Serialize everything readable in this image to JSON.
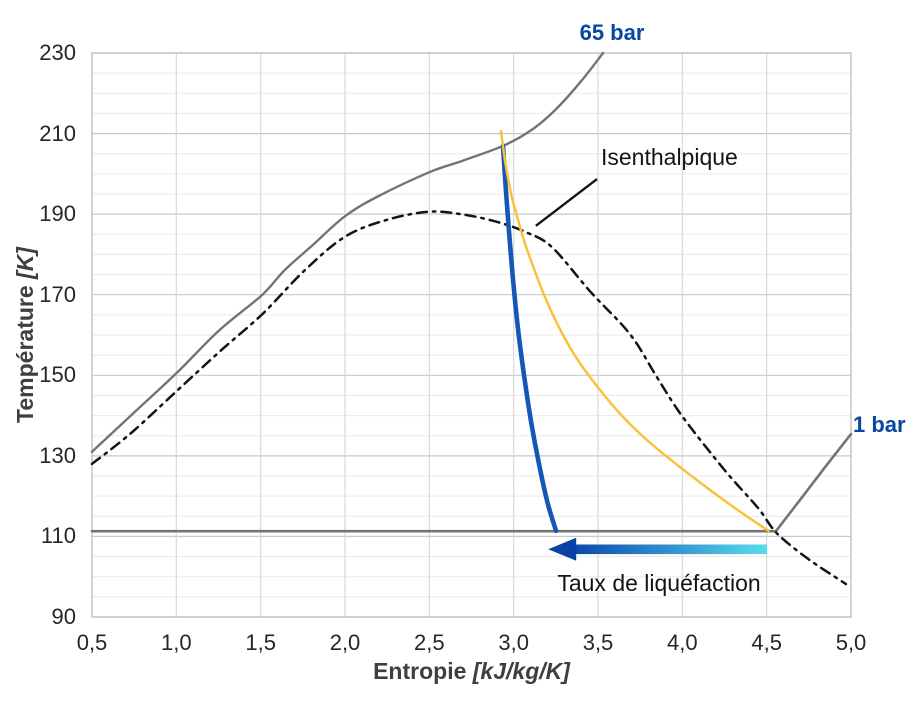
{
  "axes": {
    "x": {
      "title": "Entropie",
      "unit": " [kJ/kg/K]"
    },
    "y": {
      "title": "Température",
      "unit": " [K]"
    }
  },
  "labels": {
    "isobar_65": "65 bar",
    "isobar_1": "1 bar",
    "isenthalpic": "Isenthalpique",
    "liquefaction_rate": "Taux de liquéfaction"
  },
  "colors": {
    "curve_gray": "#747474",
    "dome_black": "#141414",
    "curve_blue": "#1656B4",
    "curve_orange": "#F8C23C",
    "label_blue": "#0847A6",
    "arrow_dark": "#0A41A4",
    "arrow_cyan": "#5ADCEE",
    "grid_minor": "#eaeaea",
    "grid_major": "#c9c9c9",
    "grid_vertical": "#d6d6d6",
    "frame": "#c2c2c2"
  },
  "chart_data": {
    "type": "line",
    "title": "",
    "xlabel": "Entropie [kJ/kg/K]",
    "ylabel": "Température [K]",
    "x_range": [
      0.5,
      5.0
    ],
    "y_range": [
      90,
      230
    ],
    "x_tick_values": [
      0.5,
      1.0,
      1.5,
      2.0,
      2.5,
      3.0,
      3.5,
      4.0,
      4.5,
      5.0
    ],
    "x_tick_labels": [
      "0,5",
      "1,0",
      "1,5",
      "2,0",
      "2,5",
      "3,0",
      "3,5",
      "4,0",
      "4,5",
      "5,0"
    ],
    "y_tick_values": [
      90,
      110,
      130,
      150,
      170,
      190,
      210,
      230
    ],
    "y_tick_labels": [
      "90",
      "110",
      "130",
      "150",
      "170",
      "190",
      "210",
      "230"
    ],
    "y_minor_step": 5,
    "grid": true,
    "legend": "none",
    "series": [
      {
        "name": "isobare-65-bar",
        "label": "65 bar",
        "color": "#747474",
        "width": 2.4,
        "dash": "",
        "smooth": true,
        "points": [
          [
            0.5,
            131
          ],
          [
            0.73,
            140
          ],
          [
            1.0,
            150.5
          ],
          [
            1.25,
            161
          ],
          [
            1.51,
            170
          ],
          [
            1.64,
            176
          ],
          [
            1.8,
            182
          ],
          [
            2.0,
            189.5
          ],
          [
            2.2,
            194.5
          ],
          [
            2.5,
            200.4
          ],
          [
            2.7,
            203.3
          ],
          [
            2.94,
            207
          ],
          [
            3.11,
            211
          ],
          [
            3.25,
            216
          ],
          [
            3.4,
            223
          ],
          [
            3.53,
            230
          ]
        ]
      },
      {
        "name": "isobare-1-bar",
        "label": "1 bar",
        "color": "#747474",
        "width": 2.6,
        "dash": "",
        "smooth": false,
        "points": [
          [
            0.5,
            111.3
          ],
          [
            4.555,
            111.3
          ],
          [
            4.7,
            119.2
          ],
          [
            4.85,
            127.4
          ],
          [
            5.0,
            135.4
          ]
        ]
      },
      {
        "name": "courbe-de-saturation",
        "label": "",
        "color": "#141414",
        "width": 2.5,
        "dash": "10 6 2.5 6",
        "smooth": true,
        "points": [
          [
            0.5,
            128
          ],
          [
            0.73,
            135.6
          ],
          [
            1.0,
            146
          ],
          [
            1.26,
            156
          ],
          [
            1.51,
            165.2
          ],
          [
            1.76,
            176
          ],
          [
            2.0,
            184.4
          ],
          [
            2.25,
            188.6
          ],
          [
            2.5,
            190.6
          ],
          [
            2.7,
            189.9
          ],
          [
            2.9,
            188.1
          ],
          [
            3.08,
            185.4
          ],
          [
            3.23,
            181.7
          ],
          [
            3.46,
            170.5
          ],
          [
            3.69,
            160.2
          ],
          [
            3.85,
            149.5
          ],
          [
            4.0,
            139.8
          ],
          [
            4.25,
            126.5
          ],
          [
            4.45,
            117
          ],
          [
            4.56,
            110.8
          ],
          [
            4.75,
            104.3
          ],
          [
            4.97,
            98.2
          ]
        ]
      },
      {
        "name": "detente-liquefaction",
        "label": "",
        "color": "#1656B4",
        "width": 4.6,
        "dash": "",
        "smooth": true,
        "points": [
          [
            2.937,
            207
          ],
          [
            2.952,
            197
          ],
          [
            2.972,
            186
          ],
          [
            3.0,
            172
          ],
          [
            3.03,
            160
          ],
          [
            3.065,
            149
          ],
          [
            3.105,
            138
          ],
          [
            3.15,
            128
          ],
          [
            3.2,
            118.5
          ],
          [
            3.251,
            111.4
          ]
        ]
      },
      {
        "name": "isenthalpique",
        "label": "Isenthalpique",
        "color": "#F8C23C",
        "width": 2.5,
        "dash": "",
        "smooth": true,
        "points": [
          [
            2.925,
            210.6
          ],
          [
            2.95,
            203
          ],
          [
            2.985,
            195
          ],
          [
            3.02,
            189.5
          ],
          [
            3.065,
            183
          ],
          [
            3.12,
            176.5
          ],
          [
            3.19,
            169
          ],
          [
            3.28,
            161
          ],
          [
            3.38,
            153.8
          ],
          [
            3.5,
            147
          ],
          [
            3.63,
            140.5
          ],
          [
            3.78,
            134.3
          ],
          [
            3.95,
            128.4
          ],
          [
            4.13,
            122.6
          ],
          [
            4.32,
            116.8
          ],
          [
            4.51,
            111.4
          ]
        ]
      }
    ],
    "arrow": {
      "name": "taux-liquefaction-arrow",
      "t": 106.8,
      "s_tip": 3.205,
      "s_tail": 4.502,
      "color_from": "#0C47AB",
      "color_to": "#5ADCEE",
      "head_color": "#0A41A4"
    },
    "leader_line": {
      "from": [
        3.494,
        198.7
      ],
      "to": [
        3.132,
        187.1
      ],
      "color": "#141414",
      "width": 2.4
    }
  }
}
